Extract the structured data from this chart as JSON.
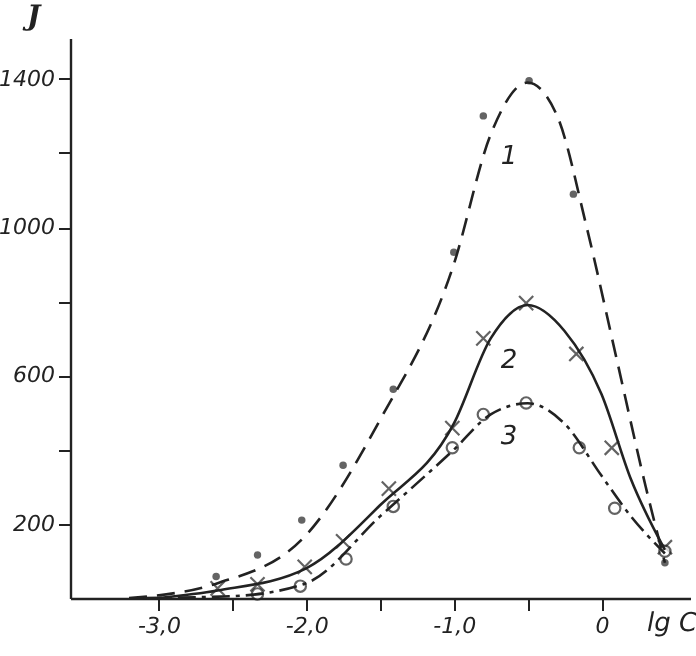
{
  "chart_data": {
    "type": "scatter",
    "ylabel": "J",
    "xlabel": "lg C",
    "xlim": [
      -3.6,
      0.6
    ],
    "ylim": [
      0,
      1510
    ],
    "xticks": [
      {
        "value": -3,
        "label": "-3,0"
      },
      {
        "value": -2.5,
        "label": null
      },
      {
        "value": -2,
        "label": "-2,0"
      },
      {
        "value": -1.5,
        "label": null
      },
      {
        "value": -1,
        "label": "-1,0"
      },
      {
        "value": -0.5,
        "label": null
      },
      0
    ],
    "yticks": [
      200,
      {
        "value": 400,
        "label": null
      },
      600,
      {
        "value": 800,
        "label": null
      },
      1000,
      {
        "value": 1200,
        "label": null
      },
      1400
    ],
    "grid": false,
    "legend": false,
    "series": [
      {
        "color": "#222222",
        "marker": "circle",
        "x": [
          -2.61,
          -2.33,
          -2.03,
          -1.75,
          -1.41,
          -1.0,
          -0.8,
          -0.49,
          -0.19,
          0.43
        ],
        "values": [
          58,
          116,
          210,
          358,
          563,
          932,
          1300,
          1395,
          1089,
          95
        ]
      },
      {
        "color": "#222222",
        "marker": "cross",
        "x": [
          -2.6,
          -2.33,
          -2.01,
          -1.75,
          -1.44,
          -1.01,
          -0.8,
          -0.51,
          -0.17,
          0.07,
          0.43
        ],
        "values": [
          26,
          37,
          84,
          153,
          295,
          458,
          700,
          795,
          658,
          405,
          137
        ]
      },
      {
        "color": "#222222",
        "marker": "circle",
        "x": [
          -2.33,
          -2.04,
          -1.73,
          -1.41,
          -1.01,
          -0.8,
          -0.51,
          -0.15,
          0.09,
          0.43
        ],
        "values": [
          11,
          32,
          105,
          247,
          405,
          495,
          526,
          405,
          242,
          126
        ]
      },
      {
        "type": "line",
        "name": "1",
        "color": "#222222",
        "line_style": "dashed",
        "x": [
          -3.2,
          -2.6,
          -2.0,
          -1.5,
          -1.0,
          -0.75,
          -0.5,
          -0.3,
          -0.1,
          0.1,
          0.3,
          0.43
        ],
        "values": [
          0,
          40,
          170,
          480,
          900,
          1250,
          1390,
          1300,
          1000,
          650,
          300,
          95
        ]
      },
      {
        "type": "line",
        "name": "2",
        "color": "#222222",
        "line_style": "solid",
        "x": [
          -3.0,
          -2.6,
          -2.0,
          -1.5,
          -1.0,
          -0.75,
          -0.5,
          -0.25,
          0,
          0.2,
          0.43
        ],
        "values": [
          0,
          20,
          80,
          250,
          470,
          700,
          790,
          720,
          550,
          320,
          130
        ]
      },
      {
        "type": "line",
        "name": "3",
        "color": "#222222",
        "line_style": "dashdot",
        "x": [
          -3.1,
          -2.5,
          -2.0,
          -1.5,
          -1.0,
          -0.75,
          -0.5,
          -0.25,
          0,
          0.2,
          0.43
        ],
        "values": [
          0,
          5,
          40,
          220,
          400,
          495,
          525,
          470,
          330,
          220,
          120
        ]
      }
    ]
  }
}
